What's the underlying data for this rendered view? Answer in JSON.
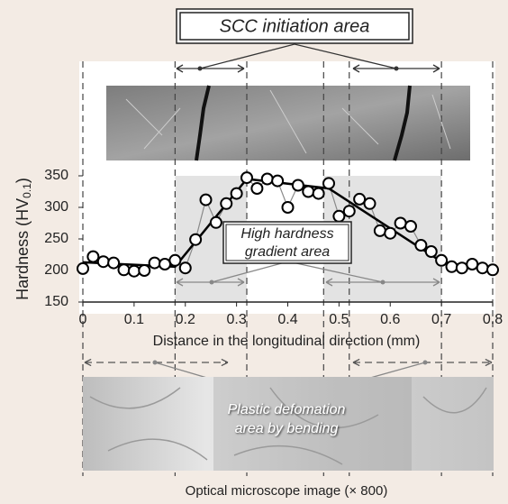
{
  "chart_data": {
    "type": "line",
    "x": [
      0,
      0.02,
      0.04,
      0.06,
      0.08,
      0.1,
      0.12,
      0.14,
      0.16,
      0.18,
      0.2,
      0.22,
      0.24,
      0.26,
      0.28,
      0.3,
      0.32,
      0.34,
      0.36,
      0.38,
      0.4,
      0.42,
      0.44,
      0.46,
      0.48,
      0.5,
      0.52,
      0.54,
      0.56,
      0.58,
      0.6,
      0.62,
      0.64,
      0.66,
      0.68,
      0.7,
      0.72,
      0.74,
      0.76,
      0.78,
      0.8
    ],
    "series": [
      {
        "color": "#000000",
        "values": [
          203,
          222,
          214,
          212,
          201,
          199,
          200,
          212,
          210,
          216,
          204,
          249,
          312,
          276,
          306,
          322,
          347,
          330,
          345,
          342,
          300,
          335,
          325,
          322,
          338,
          286,
          294,
          313,
          306,
          263,
          259,
          275,
          270,
          240,
          230,
          216,
          206,
          204,
          210,
          204,
          201
        ]
      }
    ],
    "trend": {
      "color": "#000000",
      "x": [
        0,
        0.18,
        0.32,
        0.48,
        0.7,
        0.8
      ],
      "values": [
        213,
        206,
        345,
        330,
        214,
        200
      ]
    },
    "regions": [
      [
        0.18,
        0.32
      ],
      [
        0.47,
        0.7
      ]
    ],
    "guides": [
      0,
      0.18,
      0.32,
      0.47,
      0.52,
      0.7,
      0.8
    ],
    "xlim": [
      0,
      0.8
    ],
    "ylim": [
      150,
      350
    ],
    "xticks": [
      0,
      0.1,
      0.2,
      0.3,
      0.4,
      0.5,
      0.6,
      0.7,
      0.8
    ],
    "yticks": [
      150,
      200,
      250,
      300,
      350
    ],
    "xlabel": "Distance in the longitudinal direction (mm)",
    "ylabel": {
      "main": "Hardness (HV",
      "sub": "0.1",
      "end": ")"
    },
    "annotations": {
      "scc": "SCC initiation area",
      "hardness": [
        "High hardness",
        "gradient area"
      ],
      "plastic": [
        "Plastic defomation",
        "area by bending"
      ],
      "caption": "Optical microscope image (× 800)"
    }
  }
}
